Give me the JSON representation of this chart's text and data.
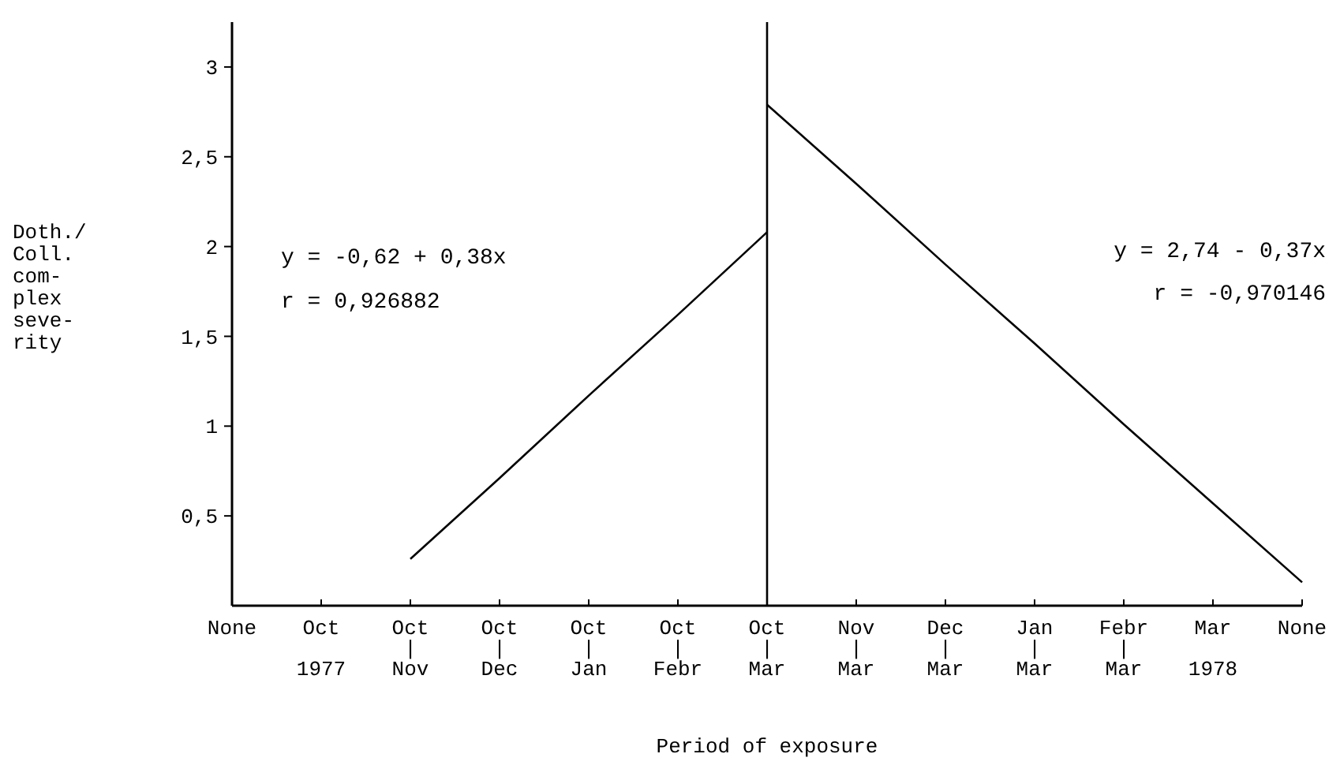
{
  "chart_data": {
    "type": "line",
    "xlabel": "Period of exposure",
    "ylabel": "Doth./\nColl.\ncom-\nplex\nseve-\nrity",
    "categories": [
      "None",
      "Oct\n\n1977",
      "Oct\n|\nNov",
      "Oct\n|\nDec",
      "Oct\n|\nJan",
      "Oct\n|\nFebr",
      "Oct\n|\nMar",
      "Nov\n|\nMar",
      "Dec\n|\nMar",
      "Jan\n|\nMar",
      "Febr\n|\nMar",
      "Mar\n\n1978",
      "None"
    ],
    "series": [
      {
        "color": "#000000",
        "values": [
          null,
          null,
          0.26,
          0.71,
          1.17,
          1.62,
          2.08,
          null,
          null,
          null,
          null,
          null,
          null
        ]
      },
      {
        "color": "#000000",
        "values": [
          null,
          null,
          null,
          null,
          null,
          null,
          2.79,
          2.35,
          1.9,
          1.46,
          1.01,
          0.57,
          0.13
        ]
      }
    ],
    "ylim": [
      0,
      3.25
    ],
    "yticks": [
      {
        "value": 0.5,
        "label": "0,5"
      },
      1,
      {
        "value": 1.5,
        "label": "1,5"
      },
      2,
      {
        "value": 2.5,
        "label": "2,5"
      },
      3
    ],
    "ref_lines": [
      {
        "axis": "x",
        "value": "Oct\n|\nMar",
        "color": "#000000"
      }
    ],
    "annotations": [
      "y = -0,62 + 0,38x",
      "r = 0,926882",
      "y = 2,74 - 0,37x",
      "r = -0,970146"
    ],
    "grid": false,
    "marker": "none",
    "line_style": "solid"
  }
}
